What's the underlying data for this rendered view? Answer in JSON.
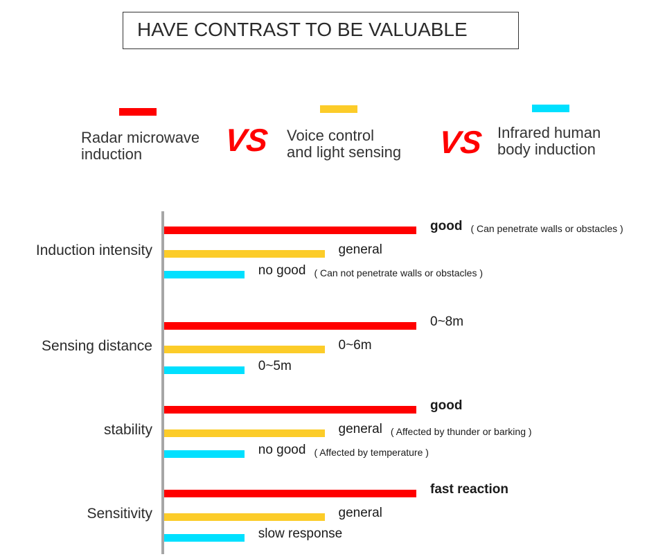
{
  "title": "HAVE CONTRAST TO BE VALUABLE",
  "vs_text": "VS",
  "legend": [
    {
      "name": "Radar microwave\ninduction",
      "color": "#ff0000"
    },
    {
      "name": "Voice control\nand light sensing",
      "color": "#fccc29"
    },
    {
      "name": "Infrared human\nbody induction",
      "color": "#00e0ff"
    }
  ],
  "chart_data": {
    "type": "bar",
    "orientation": "horizontal",
    "categories": [
      "Induction intensity",
      "Sensing distance",
      "stability",
      "Sensitivity"
    ],
    "series": [
      {
        "name": "Radar microwave induction",
        "color": "#ff0000",
        "values": [
          3,
          3,
          3,
          3
        ],
        "labels": [
          "good",
          "0~8m",
          "good",
          "fast reaction"
        ],
        "notes": [
          "( Can penetrate walls or obstacles )",
          "",
          "",
          ""
        ]
      },
      {
        "name": "Voice control and light sensing",
        "color": "#fccc29",
        "values": [
          2,
          2,
          2,
          2
        ],
        "labels": [
          "general",
          "0~6m",
          "general",
          "general"
        ],
        "notes": [
          "",
          "",
          "( Affected by thunder or barking )",
          ""
        ]
      },
      {
        "name": "Infrared human body induction",
        "color": "#00e0ff",
        "values": [
          1,
          1,
          1,
          1
        ],
        "labels": [
          "no good",
          "0~5m",
          "no good",
          "slow response"
        ],
        "notes": [
          "( Can not penetrate walls or obstacles )",
          "",
          "( Affected by temperature )",
          ""
        ]
      }
    ],
    "xlim": [
      0,
      3
    ],
    "grid": false,
    "legend_position": "top"
  }
}
